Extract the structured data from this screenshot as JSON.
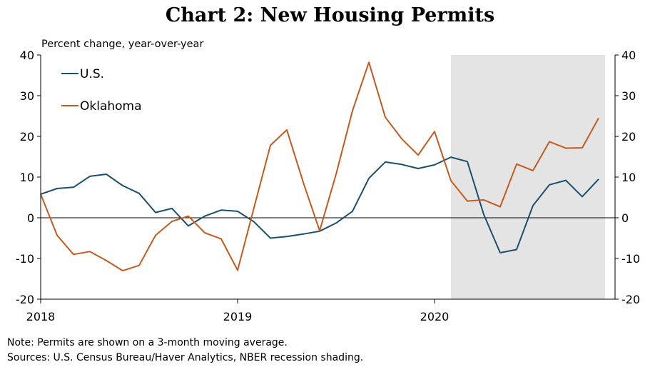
{
  "chart_data": {
    "type": "line",
    "title": "Chart 2: New Housing Permits",
    "ylabel": "Percent change, year-over-year",
    "ylim": [
      -20,
      40
    ],
    "yticks": [
      -20,
      -10,
      0,
      10,
      20,
      30,
      40
    ],
    "xlim": [
      0,
      35
    ],
    "x_tick_labels": [
      {
        "index": 0,
        "label": "2018"
      },
      {
        "index": 12,
        "label": "2019"
      },
      {
        "index": 24,
        "label": "2020"
      }
    ],
    "recession_shading": {
      "start": 25,
      "end": 34.4
    },
    "legend_position": "top-left",
    "series": [
      {
        "name": "U.S.",
        "color": "#1b4f6b",
        "values": [
          5.8,
          7.2,
          7.5,
          10.2,
          10.7,
          7.9,
          6.0,
          1.3,
          2.3,
          -2.0,
          0.4,
          1.9,
          1.6,
          -1.0,
          -5.0,
          -4.6,
          -4.0,
          -3.3,
          -1.3,
          1.6,
          9.7,
          13.7,
          13.1,
          12.1,
          13.0,
          14.9,
          13.8,
          0.8,
          -8.6,
          -7.8,
          3.0,
          8.1,
          9.2,
          5.2,
          9.5
        ]
      },
      {
        "name": "Oklahoma",
        "color": "#c55a1e",
        "values": [
          5.8,
          -4.3,
          -9.0,
          -8.3,
          -10.5,
          -13.0,
          -11.7,
          -4.3,
          -0.9,
          0.4,
          -3.7,
          -5.2,
          -12.9,
          2.5,
          17.8,
          21.6,
          8.7,
          -3.2,
          10.7,
          26.3,
          38.2,
          24.7,
          19.4,
          15.4,
          21.2,
          9.1,
          4.1,
          4.4,
          2.7,
          13.2,
          11.6,
          18.7,
          17.1,
          17.2,
          24.5
        ]
      }
    ],
    "notes": [
      "Note: Permits are shown on a 3-month moving average.",
      "Sources: U.S. Census Bureau/Haver Analytics, NBER recession shading."
    ]
  }
}
